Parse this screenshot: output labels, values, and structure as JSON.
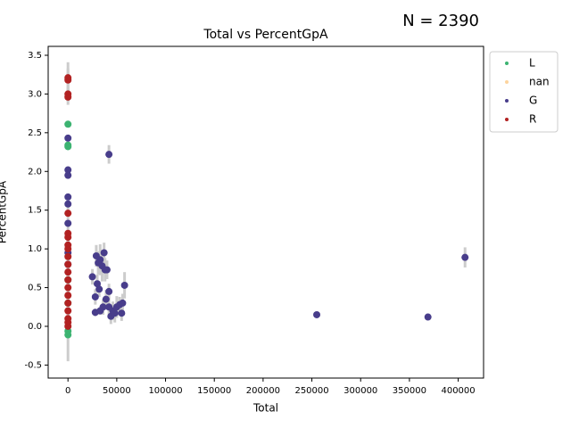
{
  "chart_data": {
    "type": "scatter",
    "title": "Total vs PercentGpA",
    "annotation": "N = 2390",
    "x_label": "Total",
    "y_label": "PercentGpA",
    "xlim": [
      -20300,
      426000
    ],
    "ylim": [
      -0.668,
      3.615
    ],
    "xticks": [
      0,
      50000,
      100000,
      150000,
      200000,
      250000,
      300000,
      350000,
      400000
    ],
    "yticks": [
      -0.5,
      {
        "value": 0,
        "label": "0.0"
      },
      0.5,
      {
        "value": 1,
        "label": "1.0"
      },
      1.5,
      {
        "value": 2,
        "label": "2.0"
      },
      2.5,
      {
        "value": 3,
        "label": "3.0"
      },
      3.5
    ],
    "legend": "outside upper right",
    "errorbar_color": "#cccccc",
    "series": [
      {
        "name": "L",
        "color": "#3cb371",
        "x": [
          0,
          0,
          0,
          0,
          0,
          0,
          0
        ],
        "values": [
          2.61,
          2.34,
          2.32,
          -0.06,
          -0.11,
          0.3,
          0.6
        ],
        "errors": [
          0,
          0,
          0,
          0,
          0,
          0,
          0
        ]
      },
      {
        "name": "nan",
        "color": "#fdd49e",
        "x": [],
        "values": [],
        "errors": []
      },
      {
        "name": "G",
        "color": "#483d8b",
        "x": [
          0,
          0,
          0,
          0,
          0,
          0,
          0,
          0,
          42000,
          25000,
          29000,
          28000,
          30000,
          31000,
          33000,
          32000,
          35000,
          37000,
          38000,
          40000,
          36000,
          39000,
          42000,
          42000,
          44000,
          46000,
          48000,
          50000,
          53000,
          55000,
          56000,
          58000,
          28000,
          33000,
          255000,
          369000,
          407000
        ],
        "values": [
          2.43,
          2.02,
          1.95,
          1.67,
          1.58,
          1.33,
          0.95,
          0.8,
          2.22,
          0.64,
          0.91,
          0.38,
          0.55,
          0.82,
          0.86,
          0.48,
          0.78,
          0.95,
          0.73,
          0.73,
          0.25,
          0.35,
          0.45,
          0.25,
          0.13,
          0.2,
          0.17,
          0.25,
          0.28,
          0.17,
          0.3,
          0.53,
          0.18,
          0.2,
          0.15,
          0.12,
          0.89
        ],
        "errors": [
          0,
          0,
          0,
          0,
          0,
          0,
          0,
          0,
          0.12,
          0.1,
          0.14,
          0.1,
          0.12,
          0.15,
          0.2,
          0.1,
          0.2,
          0.13,
          0.15,
          0.12,
          0.1,
          0.12,
          0.1,
          0.12,
          0.1,
          0.12,
          0.12,
          0.14,
          0.1,
          0.1,
          0.12,
          0.17,
          0.05,
          0.05,
          0.02,
          0.02,
          0.13
        ]
      },
      {
        "name": "R",
        "color": "#b22222",
        "x": [
          0,
          0,
          0,
          0,
          0,
          0,
          0,
          0,
          0,
          0,
          0,
          0,
          0,
          0,
          0,
          0,
          0,
          0,
          0,
          0
        ],
        "values": [
          3.21,
          3.18,
          3.0,
          2.96,
          1.46,
          1.2,
          1.15,
          1.05,
          1.0,
          0.9,
          0.8,
          0.7,
          0.6,
          0.5,
          0.4,
          0.3,
          0.2,
          0.1,
          0.05,
          0.0
        ],
        "errors": [
          0.2,
          0.15,
          0.1,
          0.1,
          0.1,
          0.1,
          0.1,
          0.1,
          0.1,
          0.1,
          0.1,
          0.1,
          0.1,
          0.1,
          0.1,
          0.1,
          0.1,
          0.55,
          0.1,
          0.1
        ]
      }
    ]
  }
}
